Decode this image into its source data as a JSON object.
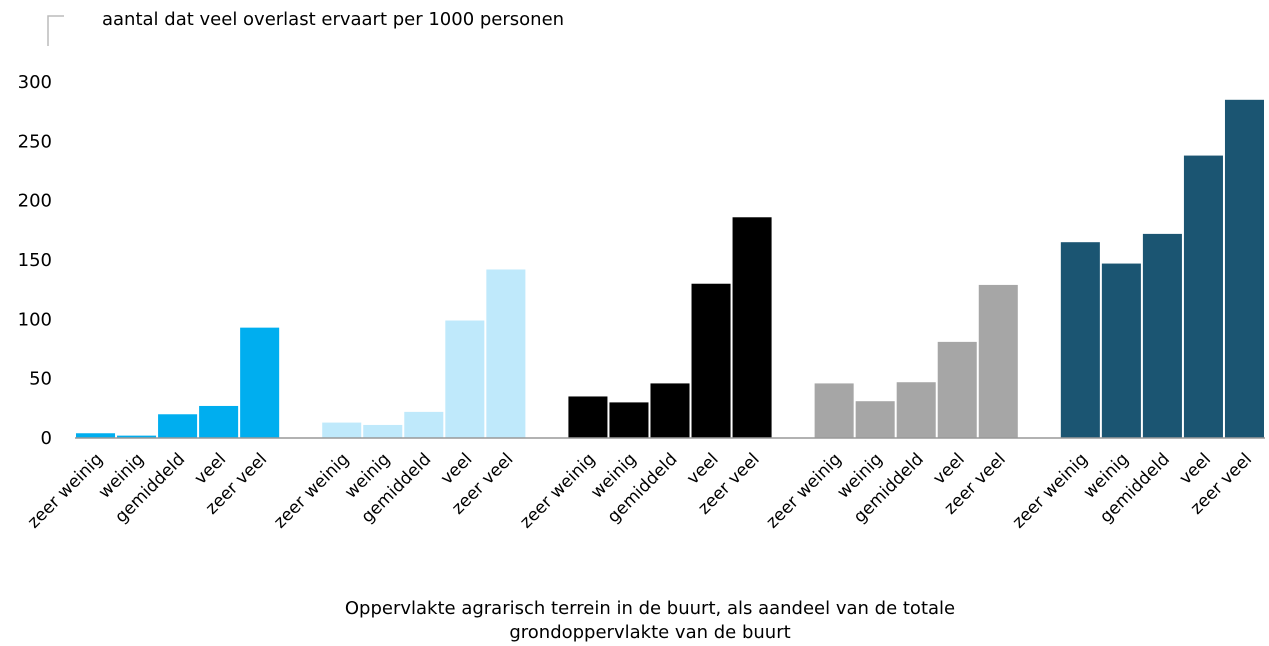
{
  "chart_data": {
    "type": "bar",
    "title": "aantal dat veel overlast ervaart per 1000 personen",
    "x_label": [
      "Oppervlakte agrarisch terrein in de buurt, als aandeel van de totale",
      "grondoppervlakte van de buurt"
    ],
    "categories": [
      "zeer weinig",
      "weinig",
      "gemiddeld",
      "veel",
      "zeer veel"
    ],
    "groups": [
      {
        "color": "#00aeef",
        "values": [
          4,
          2,
          20,
          27,
          93
        ]
      },
      {
        "color": "#bfe9fb",
        "values": [
          13,
          11,
          22,
          99,
          142
        ]
      },
      {
        "color": "#000000",
        "values": [
          35,
          30,
          46,
          130,
          186
        ]
      },
      {
        "color": "#a6a6a6",
        "values": [
          46,
          31,
          47,
          81,
          129
        ]
      },
      {
        "color": "#1b5572",
        "values": [
          165,
          147,
          172,
          238,
          285
        ]
      }
    ],
    "ylim": [
      0,
      300
    ],
    "yticks": [
      0,
      50,
      100,
      150,
      200,
      250,
      300
    ]
  }
}
